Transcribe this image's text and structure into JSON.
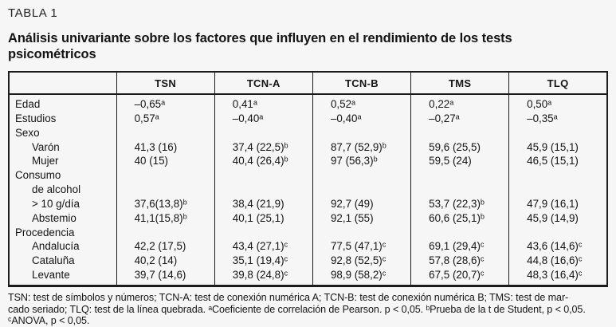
{
  "header": {
    "kicker": "TABLA 1",
    "title_lines": [
      "Análisis univariante sobre los factores que influyen en el rendimiento de los tests",
      "psicométricos"
    ]
  },
  "table": {
    "columns": [
      "",
      "TSN",
      "TCN-A",
      "TCN-B",
      "TMS",
      "TLQ"
    ],
    "rows": [
      {
        "label": "Edad",
        "indent": false,
        "values": [
          "–0,65ᵃ",
          "0,41ᵃ",
          "0,52ᵃ",
          "0,22ᵃ",
          "0,50ᵃ"
        ]
      },
      {
        "label": "Estudios",
        "indent": false,
        "values": [
          "0,57ᵃ",
          "–0,40ᵃ",
          "–0,40ᵃ",
          "–0,27ᵃ",
          "–0,35ᵃ"
        ]
      },
      {
        "label": "Sexo",
        "indent": false,
        "values": [
          "",
          "",
          "",
          "",
          ""
        ]
      },
      {
        "label": "Varón",
        "indent": true,
        "values": [
          "41,3 (16)",
          "37,4 (22,5)ᵇ",
          "87,7 (52,9)ᵇ",
          "59,6 (25,5)",
          "45,9 (15,1)"
        ]
      },
      {
        "label": "Mujer",
        "indent": true,
        "values": [
          "40 (15)",
          "40,4 (26,4)ᵇ",
          "97 (56,3)ᵇ",
          "59,5 (24)",
          "46,5 (15,1)"
        ]
      },
      {
        "label": "Consumo",
        "indent": false,
        "values": [
          "",
          "",
          "",
          "",
          ""
        ]
      },
      {
        "label": "de alcohol",
        "indent": true,
        "values": [
          "",
          "",
          "",
          "",
          ""
        ]
      },
      {
        "label": "> 10 g/día",
        "indent": true,
        "values": [
          "37,6(13,8)ᵇ",
          "38,4 (21,9)",
          "92,7 (49)",
          "53,7 (22,3)ᵇ",
          "47,9 (16,1)"
        ]
      },
      {
        "label": "Abstemio",
        "indent": true,
        "values": [
          "41,1(15,8)ᵇ",
          "40,1 (25,1)",
          "92,1 (55)",
          "60,6 (25,1)ᵇ",
          "45,9 (14,9)"
        ]
      },
      {
        "label": "Procedencia",
        "indent": false,
        "values": [
          "",
          "",
          "",
          "",
          ""
        ]
      },
      {
        "label": "Andalucía",
        "indent": true,
        "values": [
          "42,2 (17,5)",
          "43,4 (27,1)ᶜ",
          "77,5 (47,1)ᶜ",
          "69,1 (29,4)ᶜ",
          "43,6 (14,6)ᶜ"
        ]
      },
      {
        "label": "Cataluña",
        "indent": true,
        "values": [
          "40,2 (14)",
          "35,1 (19,4)ᶜ",
          "92,8 (52,5)ᶜ",
          "57,8 (28,6)ᶜ",
          "44,8 (16,6)ᶜ"
        ]
      },
      {
        "label": "Levante",
        "indent": true,
        "values": [
          "39,7 (14,6)",
          "39,8 (24,8)ᶜ",
          "98,9 (58,2)ᶜ",
          "67,5 (20,7)ᶜ",
          "48,3 (16,4)ᶜ"
        ]
      }
    ]
  },
  "footnote": {
    "lines": [
      "TSN: test de símbolos y números; TCN-A: test de conexión numérica A; TCN-B: test de conexión numérica B; TMS: test de mar-",
      "cado seriado; TLQ: test de la línea quebrada. ᵃCoeficiente de correlación de Pearson. p < 0,05. ᵇPrueba de la t de Student, p < 0,05.",
      "ᶜANOVA, p < 0,05."
    ]
  },
  "colors": {
    "background": "#f6f6f6",
    "text": "#141414",
    "border": "#1c1c1c"
  }
}
